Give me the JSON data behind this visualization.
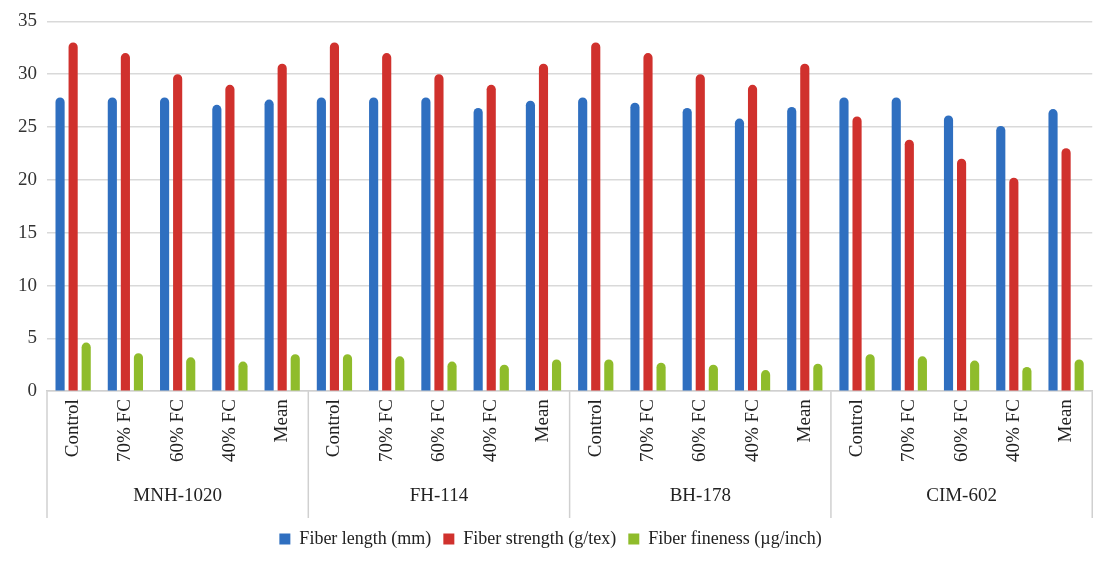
{
  "chart_data": {
    "type": "bar",
    "categories": [
      "Control",
      "70% FC",
      "60% FC",
      "40% FC",
      "Mean",
      "Control",
      "70% FC",
      "60% FC",
      "40% FC",
      "Mean",
      "Control",
      "70% FC",
      "60% FC",
      "40% FC",
      "Mean",
      "Control",
      "70% FC",
      "60% FC",
      "40% FC",
      "Mean"
    ],
    "series": [
      {
        "name": "Fiber length (mm)",
        "color": "#2f6fc0",
        "values": [
          27.8,
          27.8,
          27.8,
          27.1,
          27.6,
          27.8,
          27.8,
          27.8,
          26.8,
          27.5,
          27.8,
          27.3,
          26.8,
          25.8,
          26.9,
          27.8,
          27.8,
          26.1,
          25.1,
          26.7
        ]
      },
      {
        "name": "Fiber strength (g/tex)",
        "color": "#d0312d",
        "values": [
          33,
          32,
          30,
          29,
          31,
          33,
          32,
          30,
          29,
          31,
          33,
          32,
          30,
          29,
          31,
          26,
          23.8,
          22,
          20.2,
          23
        ]
      },
      {
        "name": "Fiber fineness (µg/inch)",
        "color": "#8fbc2b",
        "values": [
          4.6,
          3.6,
          3.2,
          2.8,
          3.5,
          3.5,
          3.3,
          2.8,
          2.5,
          3.0,
          3.0,
          2.7,
          2.5,
          2.0,
          2.6,
          3.5,
          3.3,
          2.9,
          2.3,
          3.0
        ]
      }
    ],
    "annotations": [
      "MNH-1020",
      "FH-114",
      "BH-178",
      "CIM-602"
    ],
    "ylim": [
      0,
      35
    ],
    "yticks": [
      0,
      5,
      10,
      15,
      20,
      25,
      30,
      35
    ],
    "grid": "y",
    "legend": "bottom"
  }
}
